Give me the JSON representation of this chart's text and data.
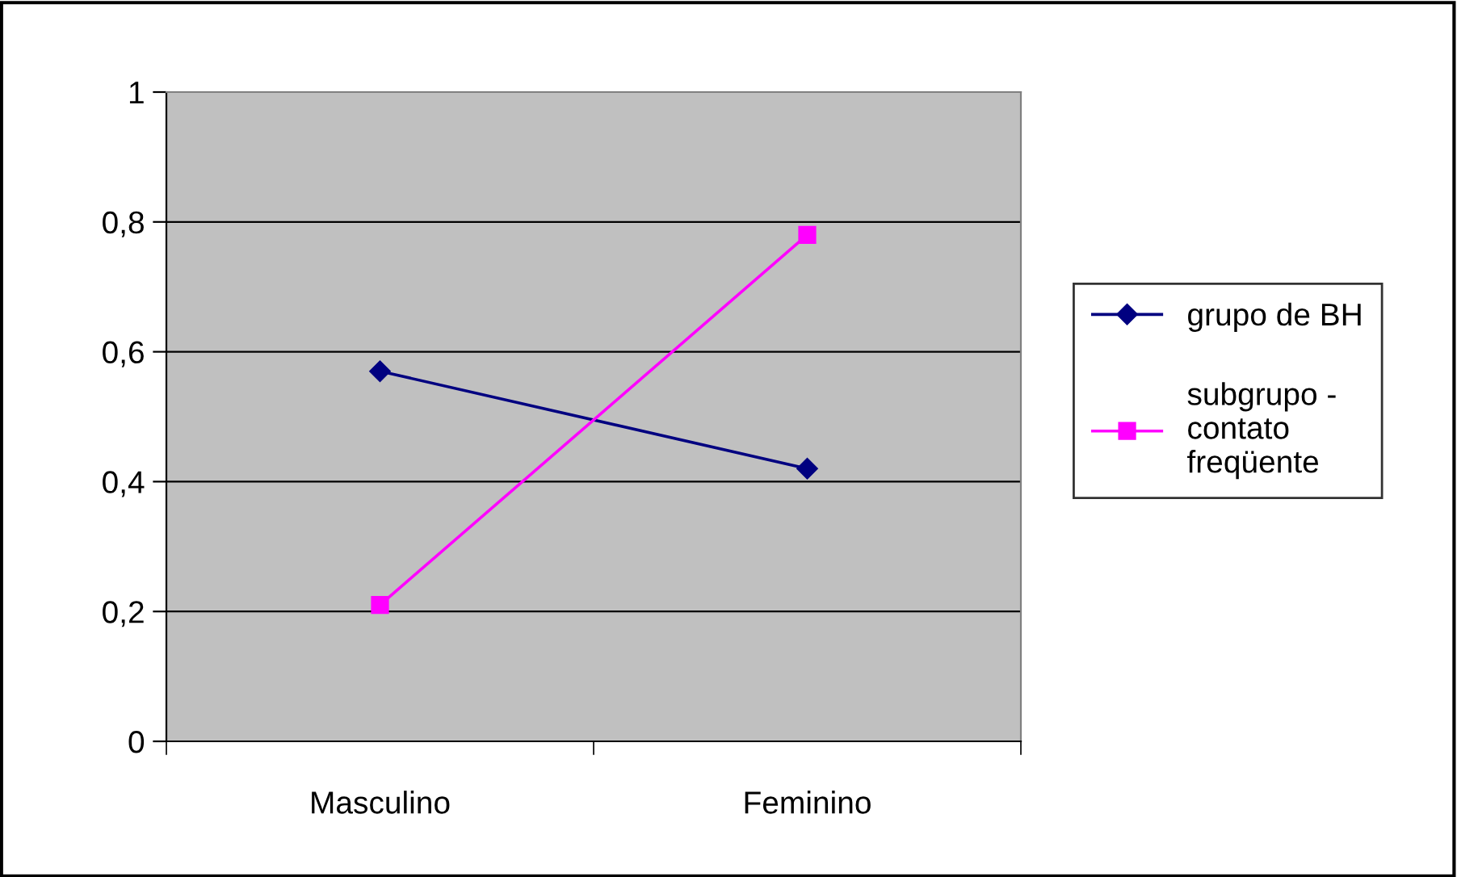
{
  "chart_data": {
    "type": "line",
    "categories": [
      "Masculino",
      "Feminino"
    ],
    "series": [
      {
        "name": "grupo de BH",
        "color": "#000080",
        "marker": "diamond",
        "values": [
          0.57,
          0.42
        ]
      },
      {
        "name": "subgrupo - contato freqüente",
        "color": "#ff00ff",
        "marker": "square",
        "values": [
          0.21,
          0.78
        ]
      }
    ],
    "ylim": [
      0,
      1
    ],
    "yticks": [
      {
        "value": 0,
        "label": "0"
      },
      {
        "value": 0.2,
        "label": "0,2"
      },
      {
        "value": 0.4,
        "label": "0,4"
      },
      {
        "value": 0.6,
        "label": "0,6"
      },
      {
        "value": 0.8,
        "label": "0,8"
      },
      {
        "value": 1,
        "label": "1"
      }
    ],
    "grid": "y",
    "legend": "right",
    "line_style": "solid"
  }
}
